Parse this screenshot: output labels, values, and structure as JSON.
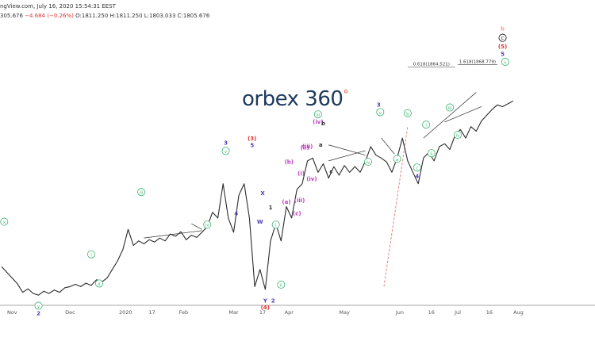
{
  "header": {
    "line1": "ngView.com, July 16, 2020 15:54:31 EEST",
    "line2_prefix": "305.676",
    "line2_change": "−4.684 (−0.26%)",
    "line2_ohlc": "O:1811.250 H:1811.250 L:1803.033 C:1805.676"
  },
  "logo": {
    "text": "orbex 360",
    "degree": "°"
  },
  "chart_data": {
    "type": "line",
    "title": "",
    "xlabel": "",
    "ylabel": "",
    "ylim": [
      1450,
      1940
    ],
    "xlim": [
      0,
      105
    ],
    "x_tick_labels": [
      {
        "x": 2,
        "label": "Nov"
      },
      {
        "x": 13,
        "label": "Dec"
      },
      {
        "x": 23.5,
        "label": "2020"
      },
      {
        "x": 28.5,
        "label": "17"
      },
      {
        "x": 34.5,
        "label": "Feb"
      },
      {
        "x": 44,
        "label": "Mar"
      },
      {
        "x": 49.5,
        "label": "17"
      },
      {
        "x": 54.5,
        "label": "Apr"
      },
      {
        "x": 65,
        "label": "May"
      },
      {
        "x": 75.5,
        "label": "Jun"
      },
      {
        "x": 81.5,
        "label": "16"
      },
      {
        "x": 86.5,
        "label": "Jul"
      },
      {
        "x": 92.5,
        "label": "16"
      },
      {
        "x": 98,
        "label": "Aug"
      }
    ],
    "series": [
      {
        "values": [
          [
            0,
            1515
          ],
          [
            1,
            1505
          ],
          [
            2,
            1495
          ],
          [
            3,
            1485
          ],
          [
            4,
            1470
          ],
          [
            5,
            1476
          ],
          [
            6,
            1468
          ],
          [
            7,
            1465
          ],
          [
            8,
            1472
          ],
          [
            9,
            1468
          ],
          [
            10,
            1474
          ],
          [
            11,
            1470
          ],
          [
            12,
            1478
          ],
          [
            13,
            1480
          ],
          [
            14,
            1484
          ],
          [
            15,
            1480
          ],
          [
            16,
            1486
          ],
          [
            17,
            1482
          ],
          [
            18,
            1492
          ],
          [
            19,
            1488
          ],
          [
            20,
            1495
          ],
          [
            21,
            1510
          ],
          [
            22,
            1525
          ],
          [
            23,
            1545
          ],
          [
            24,
            1580
          ],
          [
            25,
            1552
          ],
          [
            26,
            1560
          ],
          [
            27,
            1555
          ],
          [
            28,
            1562
          ],
          [
            29,
            1558
          ],
          [
            30,
            1565
          ],
          [
            31,
            1560
          ],
          [
            32,
            1572
          ],
          [
            33,
            1568
          ],
          [
            34,
            1576
          ],
          [
            35,
            1562
          ],
          [
            36,
            1570
          ],
          [
            37,
            1566
          ],
          [
            38,
            1575
          ],
          [
            39,
            1585
          ],
          [
            40,
            1610
          ],
          [
            41,
            1600
          ],
          [
            42,
            1660
          ],
          [
            43,
            1600
          ],
          [
            44,
            1575
          ],
          [
            45,
            1640
          ],
          [
            46,
            1660
          ],
          [
            47,
            1600
          ],
          [
            48,
            1480
          ],
          [
            49,
            1510
          ],
          [
            50,
            1475
          ],
          [
            51,
            1560
          ],
          [
            52,
            1590
          ],
          [
            53,
            1560
          ],
          [
            54,
            1620
          ],
          [
            55,
            1600
          ],
          [
            56,
            1650
          ],
          [
            57,
            1660
          ],
          [
            58,
            1700
          ],
          [
            59,
            1705
          ],
          [
            60,
            1680
          ],
          [
            61,
            1695
          ],
          [
            62,
            1670
          ],
          [
            63,
            1690
          ],
          [
            64,
            1675
          ],
          [
            65,
            1692
          ],
          [
            66,
            1680
          ],
          [
            67,
            1690
          ],
          [
            68,
            1680
          ],
          [
            69,
            1700
          ],
          [
            70,
            1725
          ],
          [
            71,
            1710
          ],
          [
            72,
            1705
          ],
          [
            73,
            1698
          ],
          [
            74,
            1680
          ],
          [
            75,
            1705
          ],
          [
            76,
            1740
          ],
          [
            77,
            1700
          ],
          [
            78,
            1680
          ],
          [
            79,
            1660
          ],
          [
            80,
            1705
          ],
          [
            81,
            1715
          ],
          [
            82,
            1700
          ],
          [
            83,
            1725
          ],
          [
            84,
            1730
          ],
          [
            85,
            1720
          ],
          [
            86,
            1745
          ],
          [
            87,
            1755
          ],
          [
            88,
            1740
          ],
          [
            89,
            1760
          ],
          [
            90,
            1752
          ],
          [
            91,
            1770
          ],
          [
            92,
            1780
          ],
          [
            93,
            1790
          ],
          [
            94,
            1798
          ],
          [
            95,
            1795
          ],
          [
            96,
            1800
          ],
          [
            97,
            1805
          ]
        ]
      }
    ],
    "wave_labels": [
      {
        "text": "x",
        "circled": true,
        "color": "#3cb371",
        "x": 0.5,
        "y": 1590
      },
      {
        "text": "y",
        "circled": true,
        "color": "#3cb371",
        "x": 7,
        "y": 1443
      },
      {
        "text": "2",
        "circled": false,
        "color": "#4a3fb5",
        "x": 7,
        "y": 1430
      },
      {
        "text": "i",
        "circled": true,
        "color": "#3cb371",
        "x": 17,
        "y": 1533
      },
      {
        "text": "ii",
        "circled": true,
        "color": "#3cb371",
        "x": 18.5,
        "y": 1482
      },
      {
        "text": "iii",
        "circled": true,
        "color": "#3cb371",
        "x": 26.5,
        "y": 1642
      },
      {
        "text": "iv",
        "circled": true,
        "color": "#3cb371",
        "x": 39,
        "y": 1585
      },
      {
        "text": "3",
        "circled": false,
        "color": "#4a3fb5",
        "x": 42.5,
        "y": 1728
      },
      {
        "text": "v",
        "circled": true,
        "color": "#3cb371",
        "x": 42.5,
        "y": 1714
      },
      {
        "text": "4",
        "circled": false,
        "color": "#4a3fb5",
        "x": 44.5,
        "y": 1605
      },
      {
        "text": "(3)",
        "circled": false,
        "color": "#d33",
        "x": 47.5,
        "y": 1736
      },
      {
        "text": "5",
        "circled": false,
        "color": "#4a3fb5",
        "x": 47.5,
        "y": 1724
      },
      {
        "text": "X",
        "circled": false,
        "color": "#4a3fb5",
        "x": 49.5,
        "y": 1640
      },
      {
        "text": "W",
        "circled": false,
        "color": "#4a3fb5",
        "x": 49,
        "y": 1590
      },
      {
        "text": "Y",
        "circled": false,
        "color": "#4a3fb5",
        "x": 50,
        "y": 1452
      },
      {
        "text": "(4)",
        "circled": false,
        "color": "#d33",
        "x": 50,
        "y": 1440
      },
      {
        "text": "1",
        "circled": false,
        "color": "#333",
        "x": 51,
        "y": 1615
      },
      {
        "text": "i",
        "circled": true,
        "color": "#3cb371",
        "x": 52,
        "y": 1585
      },
      {
        "text": "ii",
        "circled": true,
        "color": "#3cb371",
        "x": 53,
        "y": 1480
      },
      {
        "text": "2",
        "circled": false,
        "color": "#4a3fb5",
        "x": 51.5,
        "y": 1452
      },
      {
        "text": "(a)",
        "circled": false,
        "color": "#c042c0",
        "x": 54,
        "y": 1625
      },
      {
        "text": "(b)",
        "circled": false,
        "color": "#c042c0",
        "x": 54.5,
        "y": 1695
      },
      {
        "text": "(c)",
        "circled": false,
        "color": "#c042c0",
        "x": 56,
        "y": 1605
      },
      {
        "text": "(iii)",
        "circled": false,
        "color": "#c042c0",
        "x": 56.5,
        "y": 1628
      },
      {
        "text": "(i)",
        "circled": false,
        "color": "#c042c0",
        "x": 56.8,
        "y": 1675
      },
      {
        "text": "(ii)",
        "circled": false,
        "color": "#c042c0",
        "x": 57.5,
        "y": 1720
      },
      {
        "text": "(iv)",
        "circled": false,
        "color": "#c042c0",
        "x": 58.8,
        "y": 1665
      },
      {
        "text": "(iii)",
        "circled": false,
        "color": "#c042c0",
        "x": 58,
        "y": 1722
      },
      {
        "text": "(iv)",
        "circled": false,
        "color": "#c042c0",
        "x": 60,
        "y": 1765
      },
      {
        "text": "iii",
        "circled": true,
        "color": "#3cb371",
        "x": 60,
        "y": 1778
      },
      {
        "text": "b",
        "circled": false,
        "color": "#333",
        "x": 61,
        "y": 1762
      },
      {
        "text": "a",
        "circled": false,
        "color": "#333",
        "x": 60.5,
        "y": 1725
      },
      {
        "text": "c",
        "circled": false,
        "color": "#333",
        "x": 62.5,
        "y": 1678
      },
      {
        "text": "iv",
        "circled": true,
        "color": "#3cb371",
        "x": 69.5,
        "y": 1695
      },
      {
        "text": "3",
        "circled": false,
        "color": "#4a3fb5",
        "x": 71.5,
        "y": 1795
      },
      {
        "text": "v",
        "circled": true,
        "color": "#3cb371",
        "x": 71.8,
        "y": 1782
      },
      {
        "text": "b",
        "circled": true,
        "color": "#3cb371",
        "x": 77,
        "y": 1780
      },
      {
        "text": "a",
        "circled": true,
        "color": "#3cb371",
        "x": 75,
        "y": 1700
      },
      {
        "text": "c",
        "circled": true,
        "color": "#3cb371",
        "x": 78.8,
        "y": 1685
      },
      {
        "text": "4",
        "circled": false,
        "color": "#4a3fb5",
        "x": 78.8,
        "y": 1670
      },
      {
        "text": "i",
        "circled": true,
        "color": "#3cb371",
        "x": 80.5,
        "y": 1760
      },
      {
        "text": "ii",
        "circled": true,
        "color": "#3cb371",
        "x": 81.5,
        "y": 1710
      },
      {
        "text": "iii",
        "circled": true,
        "color": "#3cb371",
        "x": 85,
        "y": 1790
      },
      {
        "text": "iv",
        "circled": true,
        "color": "#3cb371",
        "x": 86.5,
        "y": 1742
      },
      {
        "text": "b",
        "circled": false,
        "color": "#e8a0a0",
        "x": 95,
        "y": 1928
      },
      {
        "text": "C",
        "circled": true,
        "color": "#111",
        "x": 95,
        "y": 1912
      },
      {
        "text": "(5)",
        "circled": false,
        "color": "#d33",
        "x": 95,
        "y": 1897
      },
      {
        "text": "5",
        "circled": false,
        "color": "#4a3fb5",
        "x": 95,
        "y": 1884
      },
      {
        "text": "v",
        "circled": true,
        "color": "#3cb371",
        "x": 95.5,
        "y": 1870
      }
    ],
    "fib_levels": [
      {
        "label": "0.618(1864.521)",
        "y": 1864.521,
        "x_start": 77,
        "x_end": 86
      },
      {
        "label": "1.618(1868.779)",
        "y": 1868.779,
        "x_start": 86.5,
        "x_end": 94
      }
    ],
    "colors": {
      "price": "#2b2b2b",
      "guide": "#2b2b2b",
      "projection": "#e07a6b"
    }
  }
}
